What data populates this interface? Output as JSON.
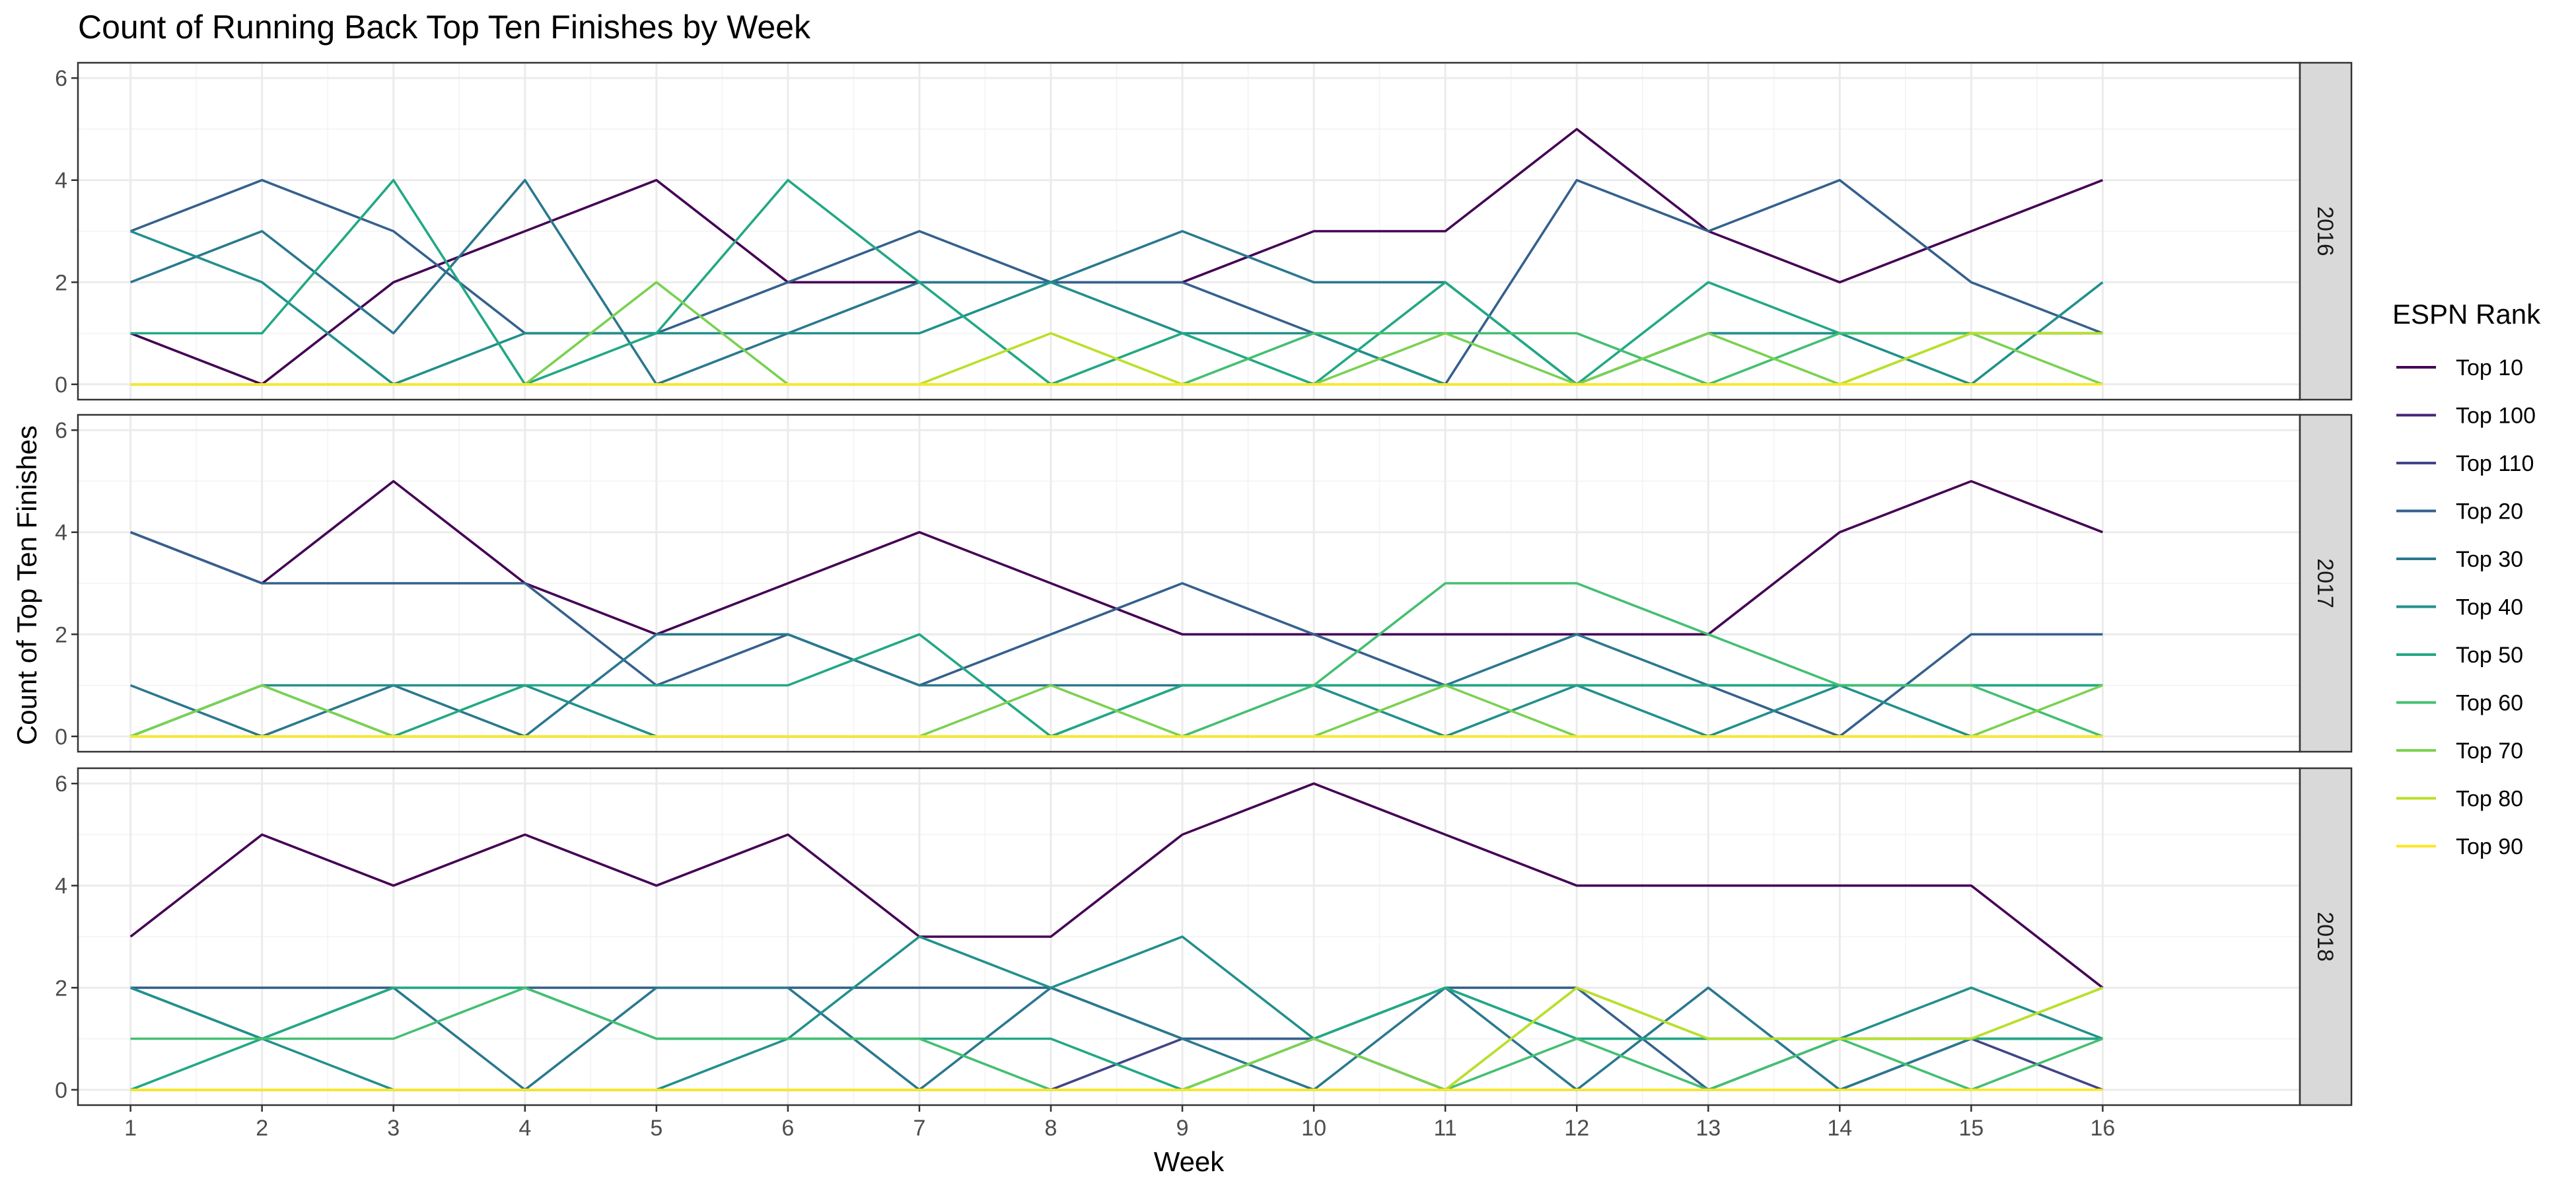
{
  "chart_data": {
    "type": "line",
    "title": "Count of Running Back Top Ten Finishes by Week",
    "xlabel": "Week",
    "ylabel": "Count of Top Ten Finishes",
    "x": [
      1,
      2,
      3,
      4,
      5,
      6,
      7,
      8,
      9,
      10,
      11,
      12,
      13,
      14,
      15,
      16
    ],
    "xlim": [
      0.6,
      17.5
    ],
    "ylim": [
      -0.3,
      6.3
    ],
    "yticks": [
      0,
      2,
      4,
      6
    ],
    "grid": true,
    "legend": {
      "title": "ESPN Rank",
      "placement": "right"
    },
    "series_colors": {
      "Top 10": "#440154",
      "Top 100": "#482576",
      "Top 110": "#414487",
      "Top 20": "#35608D",
      "Top 30": "#2A788E",
      "Top 40": "#21908C",
      "Top 50": "#22A884",
      "Top 60": "#43BF71",
      "Top 70": "#7AD151",
      "Top 80": "#BBDF27",
      "Top 90": "#FDE725"
    },
    "series_order": [
      "Top 10",
      "Top 100",
      "Top 110",
      "Top 20",
      "Top 30",
      "Top 40",
      "Top 50",
      "Top 60",
      "Top 70",
      "Top 80",
      "Top 90"
    ],
    "panels": [
      {
        "label": "2016",
        "series": [
          {
            "name": "Top 10",
            "values": [
              1,
              0,
              2,
              3,
              4,
              2,
              2,
              2,
              2,
              3,
              3,
              5,
              3,
              2,
              3,
              4
            ]
          },
          {
            "name": "Top 20",
            "values": [
              3,
              4,
              3,
              1,
              1,
              2,
              3,
              2,
              2,
              1,
              0,
              4,
              3,
              4,
              2,
              1
            ]
          },
          {
            "name": "Top 30",
            "values": [
              2,
              3,
              1,
              4,
              0,
              1,
              2,
              2,
              3,
              2,
              2,
              0,
              1,
              1,
              1,
              1
            ]
          },
          {
            "name": "Top 40",
            "values": [
              3,
              2,
              0,
              1,
              1,
              1,
              1,
              2,
              1,
              1,
              0,
              0,
              1,
              1,
              0,
              2
            ]
          },
          {
            "name": "Top 50",
            "values": [
              1,
              1,
              4,
              0,
              1,
              4,
              2,
              0,
              1,
              0,
              2,
              0,
              2,
              1,
              1,
              1
            ]
          },
          {
            "name": "Top 60",
            "values": [
              0,
              0,
              0,
              0,
              0,
              0,
              0,
              0,
              0,
              1,
              1,
              1,
              0,
              1,
              1,
              1
            ]
          },
          {
            "name": "Top 70",
            "values": [
              0,
              0,
              0,
              0,
              2,
              0,
              0,
              0,
              0,
              0,
              1,
              0,
              1,
              0,
              1,
              0
            ]
          },
          {
            "name": "Top 80",
            "values": [
              0,
              0,
              0,
              0,
              0,
              0,
              0,
              1,
              0,
              0,
              0,
              0,
              0,
              0,
              1,
              1
            ]
          },
          {
            "name": "Top 90",
            "values": [
              0,
              0,
              0,
              0,
              0,
              0,
              0,
              0,
              0,
              0,
              0,
              0,
              0,
              0,
              0,
              0
            ]
          }
        ]
      },
      {
        "label": "2017",
        "series": [
          {
            "name": "Top 10",
            "values": [
              4,
              3,
              5,
              3,
              2,
              3,
              4,
              3,
              2,
              2,
              2,
              2,
              2,
              4,
              5,
              4
            ]
          },
          {
            "name": "Top 20",
            "values": [
              4,
              3,
              3,
              3,
              1,
              2,
              1,
              2,
              3,
              2,
              1,
              1,
              1,
              0,
              2,
              2
            ]
          },
          {
            "name": "Top 30",
            "values": [
              1,
              0,
              1,
              0,
              2,
              2,
              1,
              1,
              1,
              1,
              1,
              2,
              1,
              1,
              1,
              1
            ]
          },
          {
            "name": "Top 40",
            "values": [
              0,
              1,
              1,
              1,
              0,
              0,
              0,
              0,
              1,
              1,
              0,
              1,
              0,
              1,
              0,
              0
            ]
          },
          {
            "name": "Top 50",
            "values": [
              0,
              1,
              0,
              1,
              1,
              1,
              2,
              0,
              1,
              1,
              1,
              1,
              1,
              1,
              1,
              1
            ]
          },
          {
            "name": "Top 60",
            "values": [
              0,
              0,
              0,
              0,
              0,
              0,
              0,
              0,
              0,
              1,
              3,
              3,
              2,
              1,
              1,
              0
            ]
          },
          {
            "name": "Top 70",
            "values": [
              0,
              1,
              0,
              0,
              0,
              0,
              0,
              1,
              0,
              0,
              1,
              0,
              0,
              0,
              0,
              1
            ]
          },
          {
            "name": "Top 80",
            "values": [
              0,
              0,
              0,
              0,
              0,
              0,
              0,
              0,
              0,
              0,
              0,
              0,
              0,
              0,
              0,
              0
            ]
          },
          {
            "name": "Top 90",
            "values": [
              0,
              0,
              0,
              0,
              0,
              0,
              0,
              0,
              0,
              0,
              0,
              0,
              0,
              0,
              0,
              0
            ]
          }
        ]
      },
      {
        "label": "2018",
        "series": [
          {
            "name": "Top 10",
            "values": [
              3,
              5,
              4,
              5,
              4,
              5,
              3,
              3,
              5,
              6,
              5,
              4,
              4,
              4,
              4,
              2
            ]
          },
          {
            "name": "Top 110",
            "values": [
              0,
              0,
              0,
              0,
              0,
              0,
              0,
              0,
              1,
              1,
              0,
              0,
              0,
              0,
              1,
              0
            ]
          },
          {
            "name": "Top 20",
            "values": [
              2,
              2,
              2,
              2,
              2,
              2,
              2,
              2,
              1,
              1,
              2,
              2,
              0,
              1,
              1,
              1
            ]
          },
          {
            "name": "Top 30",
            "values": [
              2,
              1,
              2,
              0,
              2,
              2,
              0,
              2,
              1,
              0,
              2,
              0,
              2,
              0,
              1,
              1
            ]
          },
          {
            "name": "Top 40",
            "values": [
              2,
              1,
              0,
              0,
              0,
              1,
              3,
              2,
              3,
              1,
              2,
              1,
              1,
              1,
              2,
              1
            ]
          },
          {
            "name": "Top 50",
            "values": [
              0,
              1,
              2,
              2,
              1,
              1,
              1,
              1,
              0,
              1,
              2,
              1,
              1,
              1,
              1,
              1
            ]
          },
          {
            "name": "Top 60",
            "values": [
              1,
              1,
              1,
              2,
              1,
              1,
              1,
              0,
              0,
              0,
              0,
              1,
              0,
              1,
              0,
              1
            ]
          },
          {
            "name": "Top 70",
            "values": [
              0,
              0,
              0,
              0,
              0,
              0,
              0,
              0,
              0,
              1,
              0,
              2,
              1,
              1,
              1,
              2
            ]
          },
          {
            "name": "Top 80",
            "values": [
              0,
              0,
              0,
              0,
              0,
              0,
              0,
              0,
              0,
              0,
              0,
              2,
              1,
              1,
              1,
              2
            ]
          },
          {
            "name": "Top 90",
            "values": [
              0,
              0,
              0,
              0,
              0,
              0,
              0,
              0,
              0,
              0,
              0,
              0,
              0,
              0,
              0,
              0
            ]
          }
        ]
      }
    ]
  }
}
